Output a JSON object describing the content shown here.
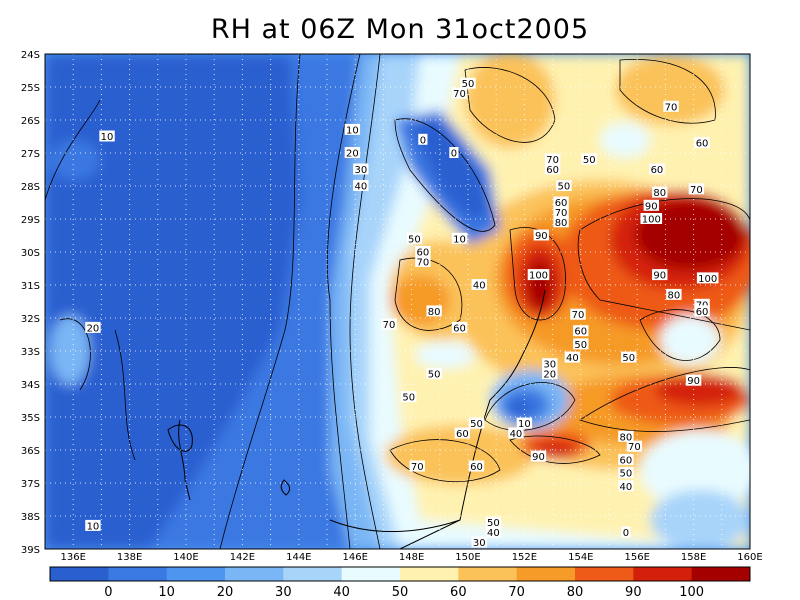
{
  "title": "RH at 06Z Mon 31oct2005",
  "lat_labels": [
    "24S",
    "25S",
    "26S",
    "27S",
    "28S",
    "29S",
    "30S",
    "31S",
    "32S",
    "33S",
    "34S",
    "35S",
    "36S",
    "37S",
    "38S",
    "39S"
  ],
  "lon_labels": [
    "136E",
    "138E",
    "140E",
    "142E",
    "144E",
    "146E",
    "148E",
    "150E",
    "152E",
    "154E",
    "156E",
    "158E",
    "160E"
  ],
  "colorbar": {
    "colors": [
      "#2a5fd0",
      "#3a78e2",
      "#4d95ee",
      "#7ab6f5",
      "#a8d4fa",
      "#e8fbff",
      "#fff2b0",
      "#fbc25a",
      "#f69a28",
      "#ee5a18",
      "#d4200a",
      "#a40000"
    ],
    "ticks": [
      "0",
      "10",
      "20",
      "30",
      "40",
      "50",
      "60",
      "70",
      "80",
      "90",
      "100"
    ]
  },
  "contour_labels": [
    {
      "text": "10",
      "lon": 137.2,
      "lat": -26.5
    },
    {
      "text": "20",
      "lon": 136.7,
      "lat": -32.3
    },
    {
      "text": "10",
      "lon": 136.7,
      "lat": -38.3
    },
    {
      "text": "10",
      "lon": 145.9,
      "lat": -26.3
    },
    {
      "text": "20",
      "lon": 145.9,
      "lat": -27.0
    },
    {
      "text": "30",
      "lon": 146.2,
      "lat": -27.5
    },
    {
      "text": "40",
      "lon": 146.2,
      "lat": -28.0
    },
    {
      "text": "0",
      "lon": 148.4,
      "lat": -26.6
    },
    {
      "text": "0",
      "lon": 149.5,
      "lat": -27.0
    },
    {
      "text": "10",
      "lon": 149.7,
      "lat": -29.6
    },
    {
      "text": "50",
      "lon": 150.0,
      "lat": -24.9
    },
    {
      "text": "70",
      "lon": 149.7,
      "lat": -25.2
    },
    {
      "text": "70",
      "lon": 153.0,
      "lat": -27.2
    },
    {
      "text": "60",
      "lon": 153.0,
      "lat": -27.5
    },
    {
      "text": "50",
      "lon": 154.3,
      "lat": -27.2
    },
    {
      "text": "60",
      "lon": 156.7,
      "lat": -27.5
    },
    {
      "text": "70",
      "lon": 157.2,
      "lat": -25.6
    },
    {
      "text": "60",
      "lon": 158.3,
      "lat": -26.7
    },
    {
      "text": "50",
      "lon": 153.4,
      "lat": -28.0
    },
    {
      "text": "60",
      "lon": 153.3,
      "lat": -28.5
    },
    {
      "text": "70",
      "lon": 153.3,
      "lat": -28.8
    },
    {
      "text": "80",
      "lon": 153.3,
      "lat": -29.1
    },
    {
      "text": "90",
      "lon": 152.6,
      "lat": -29.5
    },
    {
      "text": "100",
      "lon": 152.5,
      "lat": -30.7
    },
    {
      "text": "80",
      "lon": 156.8,
      "lat": -28.2
    },
    {
      "text": "70",
      "lon": 158.1,
      "lat": -28.1
    },
    {
      "text": "90",
      "lon": 156.5,
      "lat": -28.6
    },
    {
      "text": "100",
      "lon": 156.5,
      "lat": -29.0
    },
    {
      "text": "90",
      "lon": 156.8,
      "lat": -30.7
    },
    {
      "text": "100",
      "lon": 158.5,
      "lat": -30.8
    },
    {
      "text": "80",
      "lon": 157.3,
      "lat": -31.3
    },
    {
      "text": "70",
      "lon": 158.3,
      "lat": -31.6
    },
    {
      "text": "60",
      "lon": 158.3,
      "lat": -31.8
    },
    {
      "text": "50",
      "lon": 148.1,
      "lat": -29.6
    },
    {
      "text": "60",
      "lon": 148.4,
      "lat": -30.0
    },
    {
      "text": "70",
      "lon": 148.4,
      "lat": -30.3
    },
    {
      "text": "40",
      "lon": 150.4,
      "lat": -31.0
    },
    {
      "text": "80",
      "lon": 148.8,
      "lat": -31.8
    },
    {
      "text": "70",
      "lon": 147.2,
      "lat": -32.2
    },
    {
      "text": "60",
      "lon": 149.7,
      "lat": -32.3
    },
    {
      "text": "70",
      "lon": 153.9,
      "lat": -31.9
    },
    {
      "text": "60",
      "lon": 154.0,
      "lat": -32.4
    },
    {
      "text": "50",
      "lon": 154.0,
      "lat": -32.8
    },
    {
      "text": "40",
      "lon": 153.7,
      "lat": -33.2
    },
    {
      "text": "30",
      "lon": 152.9,
      "lat": -33.4
    },
    {
      "text": "20",
      "lon": 152.9,
      "lat": -33.7
    },
    {
      "text": "50",
      "lon": 148.8,
      "lat": -33.7
    },
    {
      "text": "50",
      "lon": 155.7,
      "lat": -33.2
    },
    {
      "text": "90",
      "lon": 158.0,
      "lat": -33.9
    },
    {
      "text": "50",
      "lon": 147.9,
      "lat": -34.4
    },
    {
      "text": "50",
      "lon": 150.3,
      "lat": -35.2
    },
    {
      "text": "60",
      "lon": 149.8,
      "lat": -35.5
    },
    {
      "text": "10",
      "lon": 152.0,
      "lat": -35.2
    },
    {
      "text": "40",
      "lon": 151.7,
      "lat": -35.5
    },
    {
      "text": "80",
      "lon": 155.6,
      "lat": -35.6
    },
    {
      "text": "70",
      "lon": 155.9,
      "lat": -35.9
    },
    {
      "text": "60",
      "lon": 155.6,
      "lat": -36.3
    },
    {
      "text": "90",
      "lon": 152.5,
      "lat": -36.2
    },
    {
      "text": "50",
      "lon": 155.6,
      "lat": -36.7
    },
    {
      "text": "40",
      "lon": 155.6,
      "lat": -37.1
    },
    {
      "text": "70",
      "lon": 148.2,
      "lat": -36.5
    },
    {
      "text": "60",
      "lon": 150.3,
      "lat": -36.5
    },
    {
      "text": "50",
      "lon": 150.9,
      "lat": -38.2
    },
    {
      "text": "40",
      "lon": 150.9,
      "lat": -38.5
    },
    {
      "text": "30",
      "lon": 150.4,
      "lat": -38.8
    },
    {
      "text": "0",
      "lon": 155.6,
      "lat": -38.5
    }
  ]
}
